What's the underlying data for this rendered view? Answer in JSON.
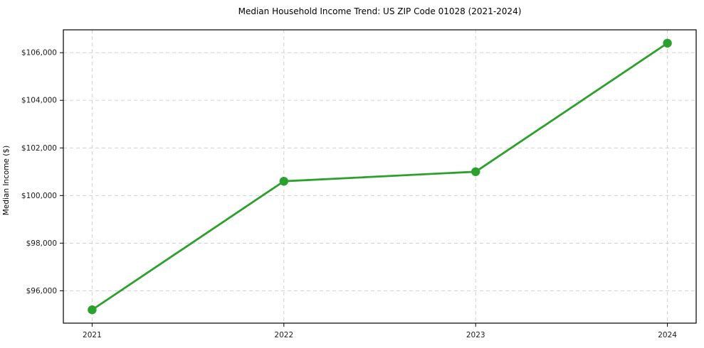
{
  "chart_data": {
    "type": "line",
    "title": "Median Household Income Trend: US ZIP Code 01028 (2021-2024)",
    "xlabel": "",
    "ylabel": "Median Income ($)",
    "x": [
      2021,
      2022,
      2023,
      2024
    ],
    "series": [
      {
        "name": "Median Household Income",
        "values": [
          95200,
          100600,
          101000,
          106400
        ]
      }
    ],
    "xticks": [
      2021,
      2022,
      2023,
      2024
    ],
    "yticks": [
      96000,
      98000,
      100000,
      102000,
      104000,
      106000
    ],
    "ytick_labels": [
      "$96,000",
      "$98,000",
      "$100,000",
      "$102,000",
      "$104,000",
      "$106,000"
    ],
    "xtick_labels": [
      "2021",
      "2022",
      "2023",
      "2024"
    ],
    "xlim": [
      2020.85,
      2024.15
    ],
    "ylim": [
      94640,
      106960
    ],
    "grid": true,
    "legend": "none",
    "colors": {
      "line": "#2ca02c",
      "marker": "#2ca02c",
      "grid": "#cccccc",
      "spine": "#000000",
      "background": "#ffffff",
      "tick_text": "#1a1a1a",
      "title_text": "#000000"
    }
  }
}
